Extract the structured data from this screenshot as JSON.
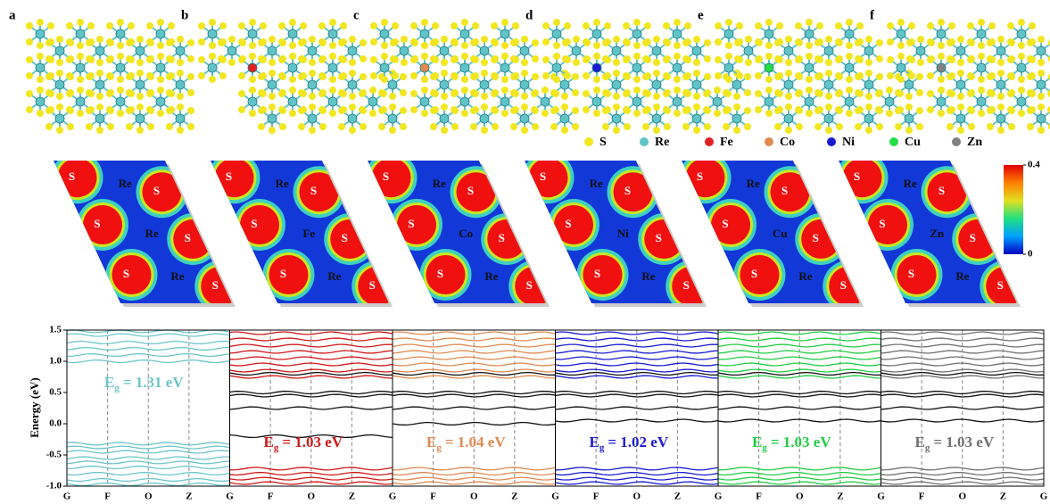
{
  "structures": {
    "panels": [
      {
        "label": "a"
      },
      {
        "label": "b",
        "dopant_color": "#e02020"
      },
      {
        "label": "c",
        "dopant_color": "#e08a50"
      },
      {
        "label": "d",
        "dopant_color": "#1a1ad0"
      },
      {
        "label": "e",
        "dopant_color": "#22dd44"
      },
      {
        "label": "f",
        "dopant_color": "#808080"
      }
    ],
    "legend": [
      {
        "name": "S",
        "color": "#f2e620"
      },
      {
        "name": "Re",
        "color": "#5fc4c8"
      },
      {
        "name": "Fe",
        "color": "#e02020"
      },
      {
        "name": "Co",
        "color": "#e08a50"
      },
      {
        "name": "Ni",
        "color": "#1a1ad0"
      },
      {
        "name": "Cu",
        "color": "#22dd44"
      },
      {
        "name": "Zn",
        "color": "#808080"
      }
    ]
  },
  "charge_density": {
    "panels": [
      {
        "labels": [
          "S",
          "Re",
          "S",
          "S",
          "Re",
          "S",
          "S",
          "Re",
          "S"
        ]
      },
      {
        "labels": [
          "S",
          "Re",
          "S",
          "S",
          "Fe",
          "S",
          "S",
          "Re",
          "S"
        ]
      },
      {
        "labels": [
          "S",
          "Re",
          "S",
          "S",
          "Co",
          "S",
          "S",
          "Re",
          "S"
        ]
      },
      {
        "labels": [
          "S",
          "Re",
          "S",
          "S",
          "Ni",
          "S",
          "S",
          "Re",
          "S"
        ]
      },
      {
        "labels": [
          "S",
          "Re",
          "S",
          "S",
          "Cu",
          "S",
          "S",
          "Re",
          "S"
        ]
      },
      {
        "labels": [
          "S",
          "Re",
          "S",
          "S",
          "Zn",
          "S",
          "S",
          "Re",
          "S"
        ]
      }
    ],
    "colorbar": {
      "ticks": [
        0.4,
        0
      ]
    }
  },
  "band_structure": {
    "y_label": "Energy (eV)",
    "ylim": [
      -1.0,
      1.5
    ],
    "yticks": [
      1.5,
      {
        "value": 1.0,
        "label": "1.0"
      },
      0.5,
      {
        "value": 0.0,
        "label": "0.0"
      },
      -0.5,
      {
        "value": -1.0,
        "label": "-1.0"
      }
    ],
    "kpoints": [
      "G",
      "F",
      "O",
      "Z",
      "G"
    ],
    "panels": [
      {
        "color": "#6cc5c8",
        "gap": {
          "symbol": "E",
          "subscript": "g",
          "text": "= 1.31 eV"
        },
        "bands": [
          -0.32,
          -0.38,
          -0.45,
          -0.55,
          -0.62,
          -0.7,
          -0.8,
          -0.9,
          -0.97,
          1.0,
          1.1,
          1.2,
          1.3,
          1.42,
          1.48
        ],
        "defect_levels": []
      },
      {
        "color": "#d01818",
        "gap": {
          "symbol": "E",
          "subscript": "g",
          "text": "= 1.03 eV"
        },
        "bands": [
          -0.72,
          -0.8,
          -0.88,
          -0.95,
          0.75,
          0.85,
          0.95,
          1.05,
          1.15,
          1.25,
          1.35,
          1.45
        ],
        "defect_levels": [
          -0.2,
          0.25,
          0.45,
          0.5,
          0.8
        ]
      },
      {
        "color": "#e08a50",
        "gap": {
          "symbol": "E",
          "subscript": "g",
          "text": "= 1.04 eV"
        },
        "bands": [
          -0.72,
          -0.8,
          -0.88,
          -0.95,
          0.75,
          0.85,
          0.95,
          1.05,
          1.15,
          1.25,
          1.35,
          1.45
        ],
        "defect_levels": [
          0.0,
          0.25,
          0.45,
          0.5,
          0.8
        ]
      },
      {
        "color": "#1a1ad0",
        "gap": {
          "symbol": "E",
          "subscript": "g",
          "text": "= 1.02 eV"
        },
        "bands": [
          -0.72,
          -0.8,
          -0.88,
          -0.95,
          0.75,
          0.85,
          0.95,
          1.05,
          1.15,
          1.25,
          1.35,
          1.45
        ],
        "defect_levels": [
          0.05,
          0.25,
          0.45,
          0.5,
          0.8
        ]
      },
      {
        "color": "#22cc44",
        "gap": {
          "symbol": "E",
          "subscript": "g",
          "text": "= 1.03 eV"
        },
        "bands": [
          -0.72,
          -0.8,
          -0.88,
          -0.95,
          0.75,
          0.85,
          0.95,
          1.05,
          1.15,
          1.25,
          1.35,
          1.45
        ],
        "defect_levels": [
          0.05,
          0.25,
          0.45,
          0.5,
          0.8
        ]
      },
      {
        "color": "#707070",
        "gap": {
          "symbol": "E",
          "subscript": "g",
          "text": "= 1.03 eV"
        },
        "bands": [
          -0.72,
          -0.8,
          -0.88,
          -0.95,
          0.75,
          0.85,
          0.95,
          1.05,
          1.15,
          1.25,
          1.35,
          1.45
        ],
        "defect_levels": [
          0.05,
          0.25,
          0.45,
          0.5,
          0.8
        ]
      }
    ]
  }
}
